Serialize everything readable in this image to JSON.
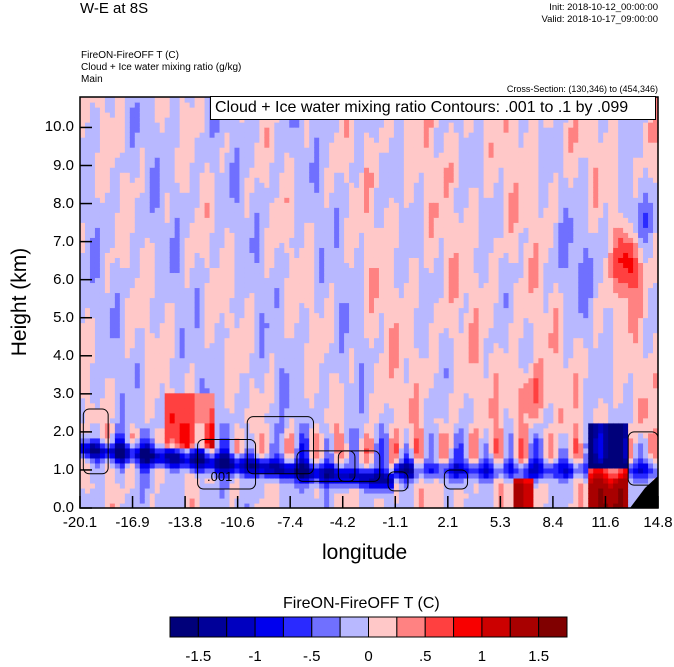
{
  "header": {
    "title": "W-E at 8S",
    "init": "Init: 2018-10-12_00:00:00",
    "valid": "Valid: 2018-10-17_09:00:00",
    "field1": "FireON-FireOFF T   (C)",
    "field2": "Cloud + Ice water mixing ratio   (g/kg)",
    "field3": "Main",
    "cross_section": "Cross-Section: (130,346) to (454,346)"
  },
  "chart_data": {
    "type": "heatmap",
    "title": "W-E at 8S",
    "xlabel": "longitude",
    "ylabel": "Height (km)",
    "xlim": [
      -20.1,
      14.8
    ],
    "ylim": [
      0,
      10.8
    ],
    "x_ticks": [
      "-20.1",
      "-16.9",
      "-13.8",
      "-10.6",
      "-7.4",
      "-4.2",
      "-1.1",
      "2.1",
      "5.3",
      "8.4",
      "11.6",
      "14.8"
    ],
    "y_ticks": [
      "0.0",
      "1.0",
      "2.0",
      "3.0",
      "4.0",
      "5.0",
      "6.0",
      "7.0",
      "8.0",
      "9.0",
      "10.0"
    ],
    "contour_label": "Cloud + Ice water mixing ratio Contours: .001 to .1 by .099",
    "contour_value_label": ".001",
    "colorbar": {
      "title": "FireON-FireOFF T  (C)",
      "levels": [
        -1.5,
        -1.25,
        -1,
        -0.75,
        -0.5,
        -0.25,
        0,
        0.25,
        0.5,
        0.75,
        1,
        1.25,
        1.5
      ],
      "labels": [
        "-1.5",
        "-1",
        "-.5",
        "0",
        ".5",
        "1",
        "1.5"
      ],
      "colors": [
        "#00007a",
        "#000099",
        "#0000c0",
        "#0000ee",
        "#2a2aff",
        "#7070ff",
        "#b8b8ff",
        "#ffc8c8",
        "#ff8282",
        "#ff4040",
        "#f80000",
        "#cc0000",
        "#a80000",
        "#800000"
      ]
    }
  }
}
